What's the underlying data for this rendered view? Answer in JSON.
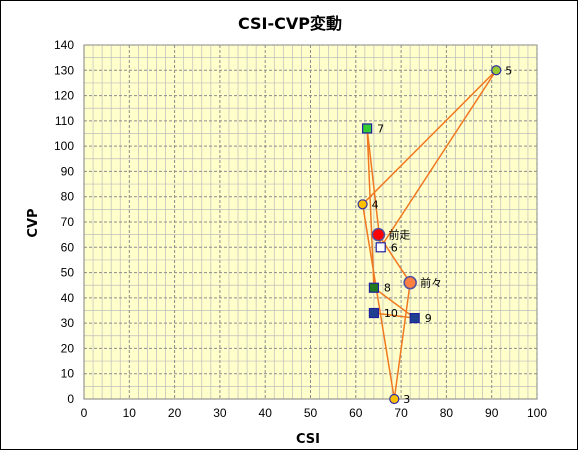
{
  "chart_data": {
    "type": "scatter",
    "title": "CSI-CVP変動",
    "xlabel": "CSI",
    "ylabel": "CVP",
    "xlim": [
      0,
      100
    ],
    "ylim": [
      0,
      140
    ],
    "x_ticks": [
      "0",
      "10",
      "20",
      "30",
      "40",
      "50",
      "60",
      "70",
      "80",
      "90",
      "100"
    ],
    "y_ticks": [
      "0",
      "10",
      "20",
      "30",
      "40",
      "50",
      "60",
      "70",
      "80",
      "90",
      "100",
      "110",
      "120",
      "130",
      "140"
    ],
    "grid": true,
    "path_order": [
      "10",
      "9",
      "8",
      "7",
      "6",
      "5",
      "4",
      "3",
      "前々",
      "前走"
    ],
    "points": [
      {
        "label": "前走",
        "x": 65,
        "y": 65,
        "marker": "circle-large",
        "color": "#ff0000"
      },
      {
        "label": "前々",
        "x": 72,
        "y": 46,
        "marker": "circle-large",
        "color": "#ff8040"
      },
      {
        "label": "3",
        "x": 68.5,
        "y": 0,
        "marker": "circle",
        "color": "#ffc000"
      },
      {
        "label": "4",
        "x": 61.5,
        "y": 77,
        "marker": "circle",
        "color": "#ffc000"
      },
      {
        "label": "5",
        "x": 91,
        "y": 130,
        "marker": "circle",
        "color": "#99cc33"
      },
      {
        "label": "6",
        "x": 65.5,
        "y": 60,
        "marker": "square",
        "color": "#ffffff"
      },
      {
        "label": "7",
        "x": 62.5,
        "y": 107,
        "marker": "square",
        "color": "#33cc33"
      },
      {
        "label": "8",
        "x": 64,
        "y": 44,
        "marker": "square",
        "color": "#1f7a1f"
      },
      {
        "label": "9",
        "x": 73,
        "y": 32,
        "marker": "square",
        "color": "#1f3f8f"
      },
      {
        "label": "10",
        "x": 64,
        "y": 34,
        "marker": "square",
        "color": "#1f3f8f"
      }
    ],
    "line_color": "#f07820",
    "plot_background": "#ffffcc",
    "grid_color": "#8c8c8c"
  }
}
